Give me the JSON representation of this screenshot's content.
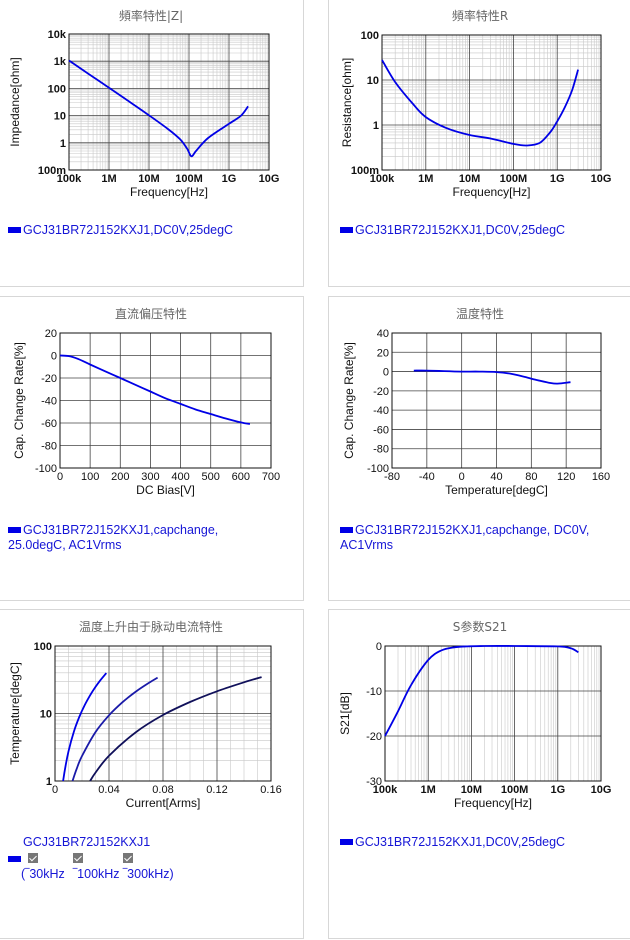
{
  "panels": [
    {
      "title": "頻率特性|Z|",
      "legend": [
        "GCJ31BR72J152KXJ1,DC0V,25degC"
      ]
    },
    {
      "title": "頻率特性R",
      "legend": [
        "GCJ31BR72J152KXJ1,DC0V,25degC"
      ]
    },
    {
      "title": "直流偏压特性",
      "legend": [
        "GCJ31BR72J152KXJ1,capchange,",
        "25.0degC, AC1Vrms"
      ]
    },
    {
      "title": "温度特性",
      "legend": [
        "GCJ31BR72J152KXJ1,capchange, DC0V,",
        "AC1Vrms"
      ]
    },
    {
      "title": "温度上升由于脉动电流特性",
      "legend": [
        "GCJ31BR72J152KXJ1"
      ],
      "frequencies": [
        "(‾30kHz",
        "‾100kHz",
        "‾300kHz)"
      ]
    },
    {
      "title": "S参数S21",
      "legend": [
        "GCJ31BR72J152KXJ1,DC0V,25degC"
      ]
    }
  ],
  "chart_data": [
    {
      "type": "line",
      "title": "頻率特性|Z|",
      "xlabel": "Frequency[Hz]",
      "ylabel": "Impedance[ohm]",
      "xscale": "log",
      "yscale": "log",
      "xlim": [
        100000,
        10000000000
      ],
      "ylim": [
        0.1,
        10000
      ],
      "xticks": [
        "100k",
        "1M",
        "10M",
        "100M",
        "1G",
        "10G"
      ],
      "yticks": [
        "100m",
        "1",
        "10",
        "100",
        "1k",
        "10k"
      ],
      "grid": true,
      "legend": "bottom-left",
      "series": [
        {
          "name": "GCJ31BR72J152KXJ1,DC0V,25degC",
          "color": "#0000e6",
          "x": [
            100000,
            300000,
            1000000,
            3000000,
            10000000,
            30000000,
            60000000,
            90000000,
            115000000,
            150000000,
            300000000,
            1000000000,
            2000000000,
            3000000000
          ],
          "y": [
            1060,
            350,
            106,
            35,
            10.3,
            3.2,
            1.35,
            0.6,
            0.32,
            0.5,
            1.5,
            5,
            10,
            22
          ]
        }
      ]
    },
    {
      "type": "line",
      "title": "頻率特性R",
      "xlabel": "Frequency[Hz]",
      "ylabel": "Resistance[ohm]",
      "xscale": "log",
      "yscale": "log",
      "xlim": [
        100000,
        10000000000
      ],
      "ylim": [
        0.1,
        100
      ],
      "xticks": [
        "100k",
        "1M",
        "10M",
        "100M",
        "1G",
        "10G"
      ],
      "yticks": [
        "100m",
        "1",
        "10",
        "100"
      ],
      "grid": true,
      "legend": "bottom-left",
      "series": [
        {
          "name": "GCJ31BR72J152KXJ1,DC0V,25degC",
          "color": "#0000e6",
          "x": [
            100000,
            200000,
            500000,
            1000000,
            3000000,
            10000000,
            30000000,
            100000000,
            200000000,
            400000000,
            700000000,
            1000000000,
            1500000000,
            2200000000,
            3000000000
          ],
          "y": [
            28,
            9,
            3,
            1.5,
            0.85,
            0.6,
            0.5,
            0.38,
            0.35,
            0.4,
            0.7,
            1.2,
            2.5,
            6,
            17
          ]
        }
      ]
    },
    {
      "type": "line",
      "title": "直流偏压特性",
      "xlabel": "DC Bias[V]",
      "ylabel": "Cap. Change Rate[%]",
      "xlim": [
        0,
        700
      ],
      "ylim": [
        -100,
        20
      ],
      "xticks": [
        0,
        100,
        200,
        300,
        400,
        500,
        600,
        700
      ],
      "yticks": [
        20,
        0,
        -20,
        -40,
        -60,
        -80,
        -100
      ],
      "grid": true,
      "legend": "bottom-left",
      "series": [
        {
          "name": "GCJ31BR72J152KXJ1,capchange,25.0degC, AC1Vrms",
          "color": "#0000e6",
          "x": [
            0,
            30,
            60,
            100,
            150,
            200,
            250,
            300,
            350,
            400,
            450,
            500,
            550,
            600,
            630
          ],
          "y": [
            0,
            -0.5,
            -3,
            -8,
            -14,
            -20,
            -26,
            -32,
            -38,
            -43,
            -48,
            -52,
            -56,
            -59.5,
            -61
          ]
        }
      ]
    },
    {
      "type": "line",
      "title": "温度特性",
      "xlabel": "Temperature[degC]",
      "ylabel": "Cap. Change Rate[%]",
      "xlim": [
        -80,
        160
      ],
      "ylim": [
        -100,
        40
      ],
      "xticks": [
        -80,
        -40,
        0,
        40,
        80,
        120,
        160
      ],
      "yticks": [
        40,
        20,
        0,
        -20,
        -40,
        -60,
        -80,
        -100
      ],
      "grid": true,
      "legend": "bottom-left",
      "series": [
        {
          "name": "GCJ31BR72J152KXJ1,capchange, DC0V, AC1Vrms",
          "color": "#0000e6",
          "x": [
            -55,
            -40,
            -20,
            0,
            20,
            40,
            55,
            70,
            85,
            100,
            110,
            125
          ],
          "y": [
            1,
            1,
            0.5,
            0,
            0,
            -0.5,
            -2,
            -5,
            -8.5,
            -11.5,
            -12.5,
            -11
          ]
        }
      ]
    },
    {
      "type": "line",
      "title": "温度上升由于脉动电流特性",
      "xlabel": "Current[Arms]",
      "ylabel": "Temperature[degC]",
      "xscale": "linear",
      "yscale": "log",
      "xlim": [
        0,
        0.16
      ],
      "ylim": [
        1,
        100
      ],
      "xticks": [
        0,
        0.04,
        0.08,
        0.12,
        0.16
      ],
      "yticks": [
        1,
        10,
        100
      ],
      "grid": true,
      "legend": "bottom-left",
      "series": [
        {
          "name": "30kHz",
          "color": "#0000e6",
          "x": [
            0.006,
            0.008,
            0.01,
            0.014,
            0.018,
            0.022,
            0.026,
            0.03,
            0.034,
            0.038
          ],
          "y": [
            1,
            1.75,
            2.75,
            5.4,
            8.9,
            13.3,
            18.6,
            24.8,
            31.8,
            39.7
          ]
        },
        {
          "name": "100kHz",
          "color": "#1a1aa8",
          "x": [
            0.013,
            0.016,
            0.02,
            0.03,
            0.04,
            0.05,
            0.06,
            0.07,
            0.076
          ],
          "y": [
            1,
            1.5,
            2.35,
            5.3,
            9.4,
            14.7,
            21.2,
            28.8,
            34
          ]
        },
        {
          "name": "300kHz",
          "color": "#10105a",
          "x": [
            0.026,
            0.03,
            0.04,
            0.06,
            0.08,
            0.1,
            0.12,
            0.14,
            0.153
          ],
          "y": [
            1,
            1.33,
            2.37,
            5.3,
            9.5,
            14.8,
            21.3,
            29,
            34.6
          ]
        }
      ]
    },
    {
      "type": "line",
      "title": "S参数S21",
      "xlabel": "Frequency[Hz]",
      "ylabel": "S21[dB]",
      "xscale": "log",
      "yscale": "linear",
      "xlim": [
        100000,
        10000000000
      ],
      "ylim": [
        -30,
        0
      ],
      "xticks": [
        "100k",
        "1M",
        "10M",
        "100M",
        "1G",
        "10G"
      ],
      "yticks": [
        0,
        -10,
        -20,
        -30
      ],
      "grid": true,
      "legend": "bottom-left",
      "series": [
        {
          "name": "GCJ31BR72J152KXJ1,DC0V,25degC",
          "color": "#0000e6",
          "x": [
            100000,
            200000,
            400000,
            1000000,
            2000000,
            4000000,
            8000000,
            20000000,
            100000000,
            1000000000,
            2000000000,
            3000000000
          ],
          "y": [
            -20,
            -14.5,
            -8.7,
            -3.1,
            -1,
            -0.3,
            -0.08,
            0,
            0,
            -0.1,
            -0.5,
            -1.4
          ]
        }
      ]
    }
  ]
}
